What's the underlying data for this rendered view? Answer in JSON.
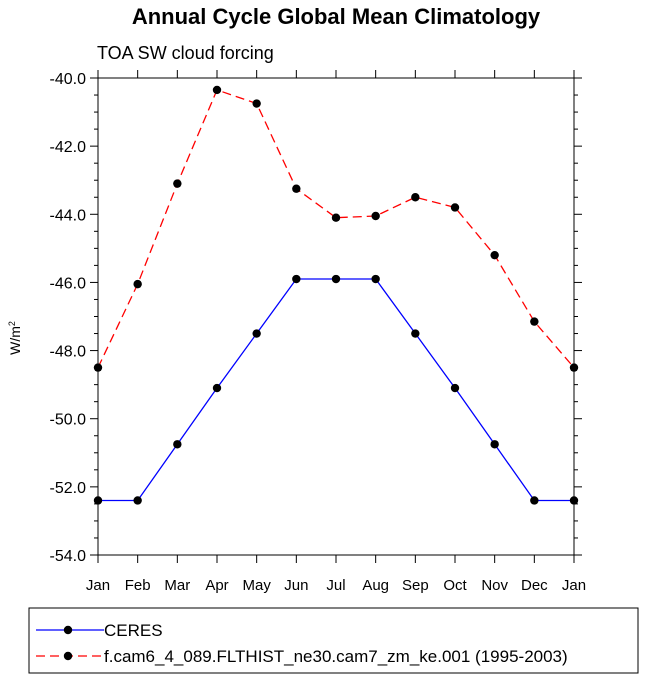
{
  "chart_data": {
    "type": "line",
    "title": "Annual Cycle Global Mean Climatology",
    "subtitle": "TOA SW cloud forcing",
    "ylabel": {
      "base": "W/m",
      "sup": "2"
    },
    "xlabel": "",
    "categories": [
      "Jan",
      "Feb",
      "Mar",
      "Apr",
      "May",
      "Jun",
      "Jul",
      "Aug",
      "Sep",
      "Oct",
      "Nov",
      "Dec",
      "Jan"
    ],
    "ylim": [
      -54.0,
      -40.0
    ],
    "yticks": [
      -40.0,
      -42.0,
      -44.0,
      -46.0,
      -48.0,
      -50.0,
      -52.0,
      -54.0
    ],
    "ytick_labels": [
      "-40.0",
      "-42.0",
      "-44.0",
      "-46.0",
      "-48.0",
      "-50.0",
      "-52.0",
      "-54.0"
    ],
    "series": [
      {
        "name": "CERES",
        "color": "#0000ff",
        "dash": "solid",
        "values": [
          -52.4,
          -52.4,
          -50.75,
          -49.1,
          -47.5,
          -45.9,
          -45.9,
          -45.9,
          -47.5,
          -49.1,
          -50.75,
          -52.4,
          -52.4
        ]
      },
      {
        "name": "f.cam6_4_089.FLTHIST_ne30.cam7_zm_ke.001 (1995-2003)",
        "color": "#ff0000",
        "dash": "dashed",
        "values": [
          -48.5,
          -46.05,
          -43.1,
          -40.35,
          -40.75,
          -43.25,
          -44.1,
          -44.05,
          -43.5,
          -43.8,
          -45.2,
          -47.15,
          -48.5
        ]
      }
    ],
    "legend_position": "bottom"
  }
}
